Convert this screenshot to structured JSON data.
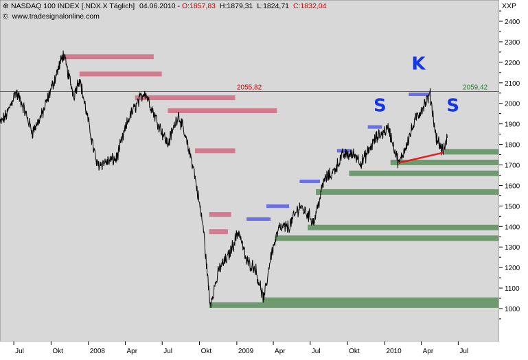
{
  "header": {
    "instrument": "NASDAQ 100 INDEX [.NDX.X  Täglich]",
    "date": "04.06.2010",
    "open": "O:1857,83",
    "high": "H:1879,31",
    "low": "L:1824,71",
    "close": "C:1832,04",
    "copyright": "www.tradesignalonline.com",
    "unit_label": "XXP"
  },
  "colors": {
    "plot_bg": "#d8d8d8",
    "price_line": "#000000",
    "resistance": "#d27a8e",
    "support": "#6f9a6f",
    "blue_bar": "#6b6fe6",
    "red_trend": "#e61e1e",
    "hline": "#2e7d32",
    "label_red": "#cc0000",
    "label_green": "#2e7d32",
    "letters": "#1436e6"
  },
  "chart_data": {
    "type": "line",
    "title": "NASDAQ 100 INDEX [.NDX.X  Täglich]",
    "ylim": [
      900,
      2500
    ],
    "y_ticks": [
      1000,
      1100,
      1200,
      1300,
      1400,
      1500,
      1600,
      1700,
      1800,
      1900,
      2000,
      2100,
      2200,
      2300,
      2400
    ],
    "y_tick_labels": [
      "1000",
      "1100",
      "1200",
      "1300",
      "1400",
      "1500",
      "1600",
      "1700",
      "1800",
      "1900",
      "2000",
      "2100",
      "2200",
      "2300",
      "2400"
    ],
    "x_labels": [
      "Jul",
      "Okt",
      "2008",
      "Apr",
      "Jul",
      "Okt",
      "2009",
      "Apr",
      "Jul",
      "Okt",
      "2010",
      "Apr",
      "Jul"
    ],
    "x_label_dates": [
      "2007-07-01",
      "2007-10-01",
      "2008-01-01",
      "2008-04-01",
      "2008-07-01",
      "2008-10-01",
      "2009-01-01",
      "2009-04-01",
      "2009-07-01",
      "2009-10-01",
      "2010-01-01",
      "2010-04-01",
      "2010-07-01"
    ],
    "x_range": [
      "2007-05-28",
      "2010-10-10"
    ],
    "series": [
      {
        "values_date": [
          "2007-05-28",
          "2007-06-15",
          "2007-07-05",
          "2007-07-19",
          "2007-08-16",
          "2007-09-10",
          "2007-10-31",
          "2007-11-26",
          "2007-12-10",
          "2008-01-22",
          "2008-03-10",
          "2008-04-10",
          "2008-05-19",
          "2008-06-15",
          "2008-07-15",
          "2008-08-10",
          "2008-09-15",
          "2008-10-10",
          "2008-10-27",
          "2008-11-20",
          "2008-12-10",
          "2009-01-06",
          "2009-01-25",
          "2009-02-15",
          "2009-03-09",
          "2009-03-25",
          "2009-04-15",
          "2009-05-10",
          "2009-06-05",
          "2009-06-30",
          "2009-07-10",
          "2009-08-05",
          "2009-08-25",
          "2009-09-20",
          "2009-10-20",
          "2009-11-05",
          "2009-12-10",
          "2010-01-10",
          "2010-02-05",
          "2010-02-25",
          "2010-03-20",
          "2010-04-23",
          "2010-05-07",
          "2010-05-25",
          "2010-06-04"
        ],
        "values": [
          1900,
          1950,
          2055,
          2010,
          1860,
          1950,
          2238,
          2040,
          2125,
          1700,
          1730,
          1930,
          2060,
          1930,
          1800,
          1950,
          1700,
          1400,
          1020,
          1200,
          1250,
          1380,
          1230,
          1200,
          1040,
          1250,
          1390,
          1400,
          1500,
          1450,
          1420,
          1630,
          1660,
          1750,
          1750,
          1710,
          1830,
          1880,
          1700,
          1810,
          1930,
          2040,
          1840,
          1760,
          1832
        ],
        "color": "#000000"
      }
    ],
    "horizontal_lines": [
      {
        "value": 2055.82,
        "label": "2055,82",
        "label_color": "#cc0000"
      },
      {
        "value": 2059.42,
        "label": "2059,42",
        "label_color": "#2e7d32"
      }
    ],
    "resistance_zones": [
      {
        "y": 2227,
        "from": "2007-11-01",
        "to": "2008-06-10"
      },
      {
        "y": 2143,
        "from": "2007-12-10",
        "to": "2008-06-30"
      },
      {
        "y": 2027,
        "from": "2008-04-25",
        "to": "2008-12-28"
      },
      {
        "y": 1964,
        "from": "2008-07-15",
        "to": "2009-04-10"
      },
      {
        "y": 1769,
        "from": "2008-09-20",
        "to": "2008-12-28"
      },
      {
        "y": 1459,
        "from": "2008-10-25",
        "to": "2008-12-18"
      },
      {
        "y": 1375,
        "from": "2008-10-25",
        "to": "2008-12-10"
      }
    ],
    "blue_zones": [
      {
        "y": 1436,
        "from": "2009-01-25",
        "to": "2009-03-25"
      },
      {
        "y": 1499,
        "from": "2009-03-15",
        "to": "2009-05-10"
      },
      {
        "y": 1620,
        "from": "2009-06-05",
        "to": "2009-07-25"
      },
      {
        "y": 1769,
        "from": "2009-09-05",
        "to": "2009-10-10"
      },
      {
        "y": 1885,
        "from": "2009-11-20",
        "to": "2009-12-25"
      },
      {
        "y": 2044,
        "from": "2010-03-01",
        "to": "2010-04-20"
      }
    ],
    "support_zones": [
      {
        "y": 1764,
        "from": "2010-05-28",
        "to": "2010-10-10"
      },
      {
        "y": 1712,
        "from": "2010-01-15",
        "to": "2010-10-10"
      },
      {
        "y": 1659,
        "from": "2009-10-05",
        "to": "2010-10-10"
      },
      {
        "y": 1568,
        "from": "2009-07-15",
        "to": "2010-10-10"
      },
      {
        "y": 1395,
        "from": "2009-06-25",
        "to": "2010-10-10"
      },
      {
        "y": 1343,
        "from": "2009-04-05",
        "to": "2010-10-10"
      },
      {
        "y": 1041,
        "from": "2009-03-05",
        "to": "2010-10-10"
      },
      {
        "y": 1017,
        "from": "2008-10-25",
        "to": "2010-10-10"
      }
    ],
    "trend_line": {
      "from_date": "2010-02-05",
      "from_value": 1710,
      "to_date": "2010-05-25",
      "to_value": 1760,
      "color": "#e61e1e"
    },
    "annotations": [
      {
        "text": "S",
        "date": "2009-12-20",
        "value": 1960
      },
      {
        "text": "K",
        "date": "2010-03-25",
        "value": 2165
      },
      {
        "text": "S",
        "date": "2010-06-18",
        "value": 1960
      }
    ]
  }
}
